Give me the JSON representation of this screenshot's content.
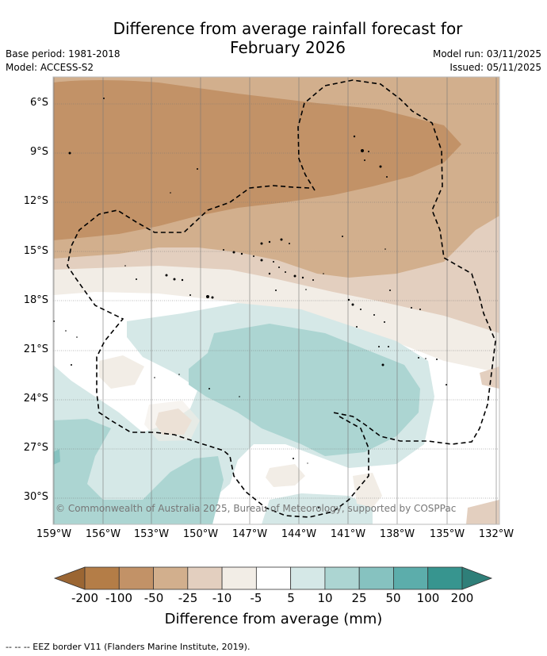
{
  "header": {
    "title_line1": "Difference from average rainfall forecast for",
    "title_line2": "February 2026",
    "base_period": "Base period: 1981-2018",
    "model": "Model: ACCESS-S2",
    "model_run": "Model run: 03/11/2025",
    "issued": "Issued: 05/11/2025"
  },
  "map": {
    "lat_labels": [
      "6°S",
      "9°S",
      "12°S",
      "15°S",
      "18°S",
      "21°S",
      "24°S",
      "27°S",
      "30°S"
    ],
    "lon_labels": [
      "159°W",
      "156°W",
      "153°W",
      "150°W",
      "147°W",
      "144°W",
      "141°W",
      "138°W",
      "135°W",
      "132°W"
    ],
    "copyright": "© Commonwealth of Australia 2025, Bureau of Meteorology, supported by COSPPac"
  },
  "colorbar": {
    "title": "Difference from average (mm)",
    "labels": [
      "-200",
      "-100",
      "-50",
      "-25",
      "-10",
      "-5",
      "5",
      "10",
      "25",
      "50",
      "100",
      "200"
    ],
    "colors": {
      "under": "#9b6633",
      "bins": [
        "#b47d47",
        "#c29267",
        "#d2af8d",
        "#e3cfbf",
        "#f2ede6",
        "#ffffff",
        "#d5e8e7",
        "#acd5d2",
        "#86c2c0",
        "#5cadab",
        "#37958f"
      ],
      "over": "#2f7f79"
    }
  },
  "footer": {
    "eez_note": "--  --  -- EEZ border V11 (Flanders Marine Institute, 2019)."
  }
}
